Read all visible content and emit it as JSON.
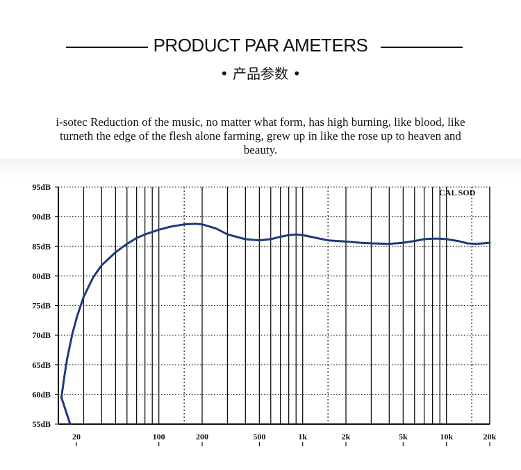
{
  "header": {
    "title": "PRODUCT PAR AMETERS",
    "subtitle": "• 产品参数 •"
  },
  "intro_text": "i-sotec Reduction of the music, no matter what form, has high burning, like blood, like turneth the edge of the flesh alone farming, grew up in like the rose up to heaven and beauty.",
  "chart_data": {
    "type": "line",
    "title": "",
    "xlabel": "",
    "ylabel": "",
    "x_scale": "log",
    "xlim": [
      20,
      20000
    ],
    "ylim": [
      55,
      95
    ],
    "annotation": "CAL SOD",
    "x_ticks": [
      {
        "value": 20,
        "label": "20"
      },
      {
        "value": 100,
        "label": "100"
      },
      {
        "value": 200,
        "label": "200"
      },
      {
        "value": 500,
        "label": "500"
      },
      {
        "value": 1000,
        "label": "1k"
      },
      {
        "value": 2000,
        "label": "2k"
      },
      {
        "value": 5000,
        "label": "5k"
      },
      {
        "value": 10000,
        "label": "10k"
      },
      {
        "value": 20000,
        "label": "20k"
      }
    ],
    "y_ticks": [
      {
        "value": 95,
        "label": "95dB"
      },
      {
        "value": 90,
        "label": "90dB"
      },
      {
        "value": 85,
        "label": "85dB"
      },
      {
        "value": 80,
        "label": "80dB"
      },
      {
        "value": 75,
        "label": "75dB"
      },
      {
        "value": 70,
        "label": "70dB"
      },
      {
        "value": 65,
        "label": "65dB"
      },
      {
        "value": 60,
        "label": "60dB"
      },
      {
        "value": 55,
        "label": "55dB"
      }
    ],
    "grid_solid": [
      30,
      40,
      50,
      60,
      70,
      80,
      90,
      100,
      200,
      300,
      400,
      500,
      600,
      700,
      800,
      900,
      1000,
      2000,
      3000,
      4000,
      5000,
      6000,
      7000,
      8000,
      9000,
      10000
    ],
    "grid_dotted": [
      150,
      1500,
      15000
    ],
    "series": [
      {
        "color": "#1f3a7a",
        "x": [
          20,
          21,
          22,
          23,
          25,
          27,
          30,
          35,
          40,
          50,
          60,
          70,
          80,
          100,
          120,
          150,
          180,
          200,
          250,
          300,
          400,
          500,
          600,
          700,
          800,
          900,
          1000,
          1200,
          1500,
          2000,
          2500,
          3000,
          4000,
          5000,
          6000,
          7000,
          8000,
          9000,
          10000,
          12000,
          14000,
          16000,
          18000,
          20000
        ],
        "y": [
          55.0,
          59.5,
          63.0,
          66.0,
          70.2,
          73.2,
          76.5,
          79.8,
          81.8,
          84.0,
          85.4,
          86.4,
          87.0,
          87.8,
          88.3,
          88.7,
          88.8,
          88.7,
          88.0,
          87.0,
          86.2,
          86.0,
          86.2,
          86.6,
          86.9,
          87.0,
          86.9,
          86.5,
          86.0,
          85.8,
          85.6,
          85.5,
          85.4,
          85.6,
          85.9,
          86.2,
          86.3,
          86.3,
          86.2,
          85.9,
          85.5,
          85.4,
          85.5,
          85.6
        ]
      }
    ]
  }
}
